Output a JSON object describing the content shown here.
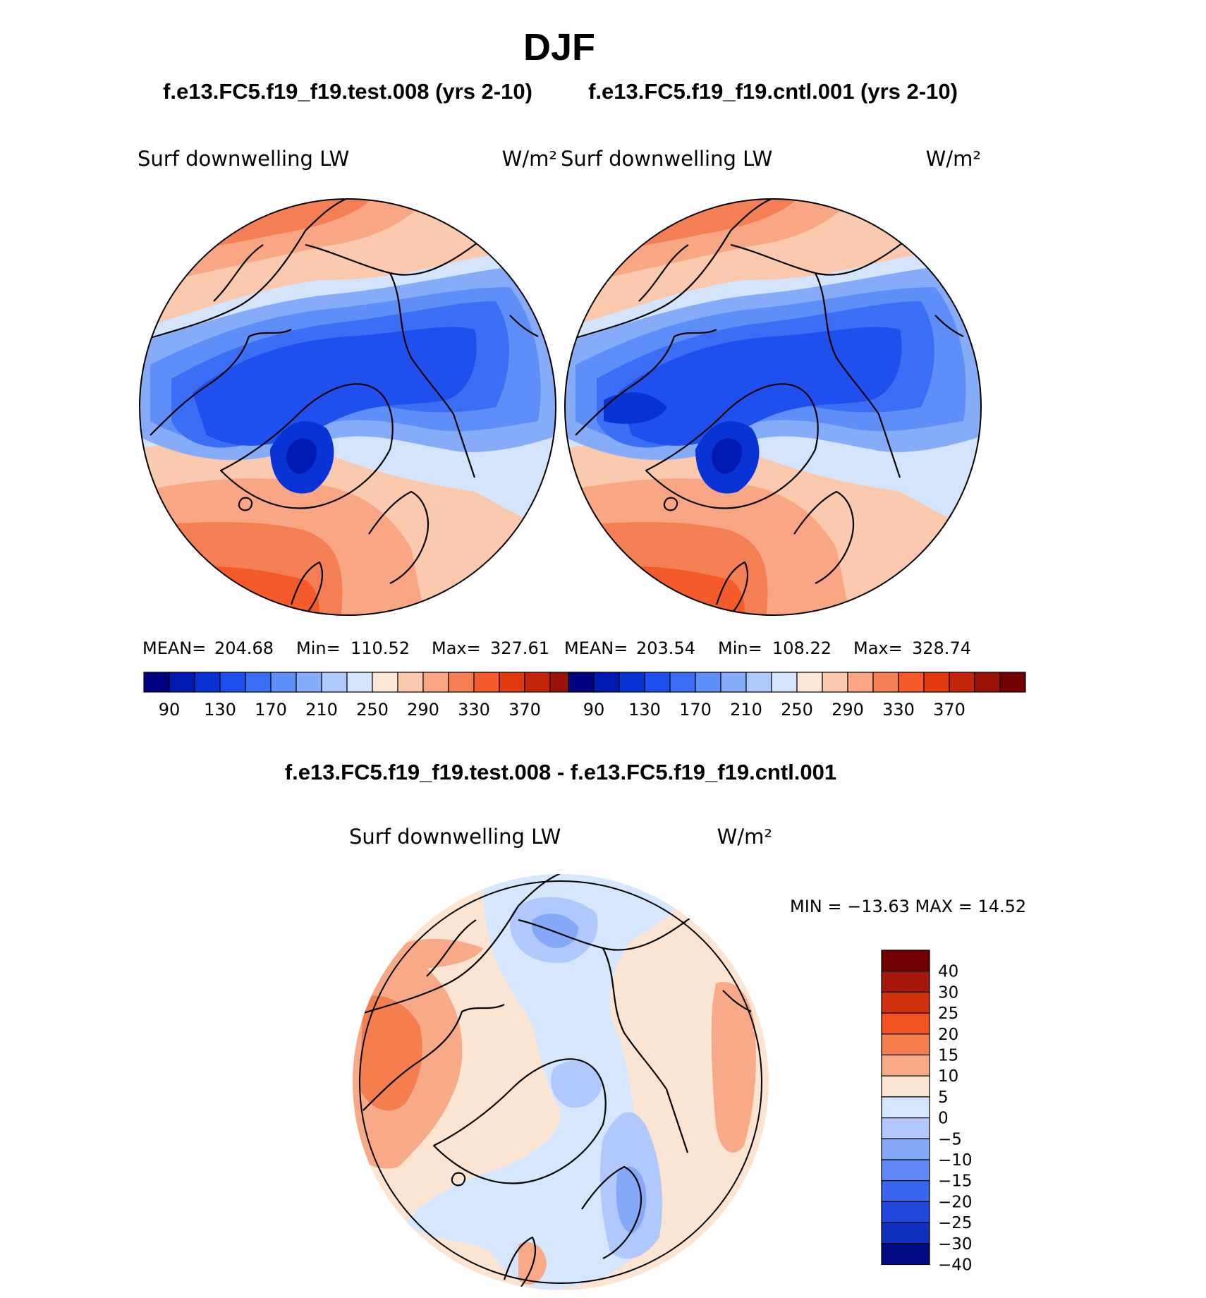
{
  "season": "DJF",
  "colors": {
    "abs_scale": [
      "#000080",
      "#0019b0",
      "#0a33d6",
      "#1f50ee",
      "#3b6ef5",
      "#5f8ef8",
      "#86acf9",
      "#afc9fb",
      "#d4e4fc",
      "#fce6d6",
      "#fbcaae",
      "#f8a684",
      "#f57f55",
      "#f45a2a",
      "#e33b10",
      "#c2260a",
      "#9a1308",
      "#720000"
    ],
    "diff_scale": [
      "#720000",
      "#a5180a",
      "#d1300d",
      "#f3541f",
      "#f57e4f",
      "#f8a988",
      "#fce4d2",
      "#d6e6fc",
      "#b0c8fb",
      "#86a8f8",
      "#5f88f5",
      "#3b64ee",
      "#2046dc",
      "#0f2fbf",
      "#000b84"
    ]
  },
  "chart_data": [
    {
      "type": "heatmap",
      "projection": "north polar stereographic",
      "case_title": "f.e13.FC5.f19_f19.test.008 (yrs 2-10)",
      "variable": "Surf downwelling LW",
      "units": "W/m²",
      "stats": {
        "mean_label": "MEAN=",
        "mean": "204.68",
        "min_label": "Min=",
        "min": "110.52",
        "max_label": "Max=",
        "max": "327.61"
      },
      "colorbar": {
        "orientation": "horizontal",
        "levels": [
          80,
          90,
          110,
          130,
          150,
          170,
          190,
          210,
          230,
          250,
          270,
          290,
          310,
          330,
          350,
          370,
          390
        ],
        "tick_labels": [
          "90",
          "130",
          "170",
          "210",
          "250",
          "290",
          "330",
          "370"
        ]
      }
    },
    {
      "type": "heatmap",
      "projection": "north polar stereographic",
      "case_title": "f.e13.FC5.f19_f19.cntl.001 (yrs 2-10)",
      "variable": "Surf downwelling LW",
      "units": "W/m²",
      "stats": {
        "mean_label": "MEAN=",
        "mean": "203.54",
        "min_label": "Min=",
        "min": "108.22",
        "max_label": "Max=",
        "max": "328.74"
      },
      "colorbar": {
        "orientation": "horizontal",
        "levels": [
          80,
          90,
          110,
          130,
          150,
          170,
          190,
          210,
          230,
          250,
          270,
          290,
          310,
          330,
          350,
          370,
          390
        ],
        "tick_labels": [
          "90",
          "130",
          "170",
          "210",
          "250",
          "290",
          "330",
          "370"
        ]
      }
    },
    {
      "type": "heatmap",
      "projection": "north polar stereographic",
      "case_title": "f.e13.FC5.f19_f19.test.008 - f.e13.FC5.f19_f19.cntl.001",
      "variable": "Surf downwelling LW",
      "units": "W/m²",
      "stats": {
        "label": "MIN = −13.63 MAX =  14.52",
        "min": -13.63,
        "max": 14.52
      },
      "colorbar": {
        "orientation": "vertical",
        "levels": [
          40,
          30,
          25,
          20,
          15,
          10,
          5,
          0,
          -5,
          -10,
          -15,
          -20,
          -25,
          -30,
          -40
        ],
        "tick_labels": [
          "40",
          "30",
          "25",
          "20",
          "15",
          "10",
          "5",
          "0",
          "−5",
          "−10",
          "−15",
          "−20",
          "−25",
          "−30",
          "−40"
        ]
      }
    }
  ]
}
